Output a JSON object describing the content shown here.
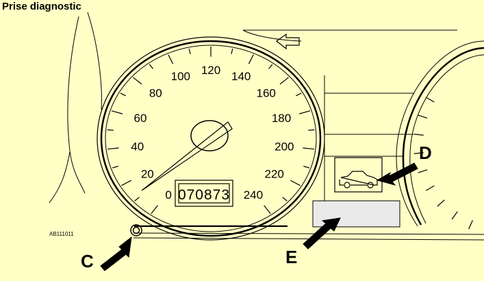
{
  "title": "Prise diagnostic",
  "reference_code": "AB111011",
  "speedometer": {
    "scale_labels": [
      "0",
      "20",
      "40",
      "60",
      "80",
      "100",
      "120",
      "140",
      "160",
      "180",
      "200",
      "220",
      "240"
    ],
    "odometer": "070873"
  },
  "callouts": {
    "c": "C",
    "d": "D",
    "e": "E"
  },
  "colors": {
    "background": "#ffffc6",
    "ink": "#000000",
    "window_fill": "#eaeaea"
  },
  "icons": {
    "car": "car-icon",
    "arrow": "left-arrow-icon"
  }
}
